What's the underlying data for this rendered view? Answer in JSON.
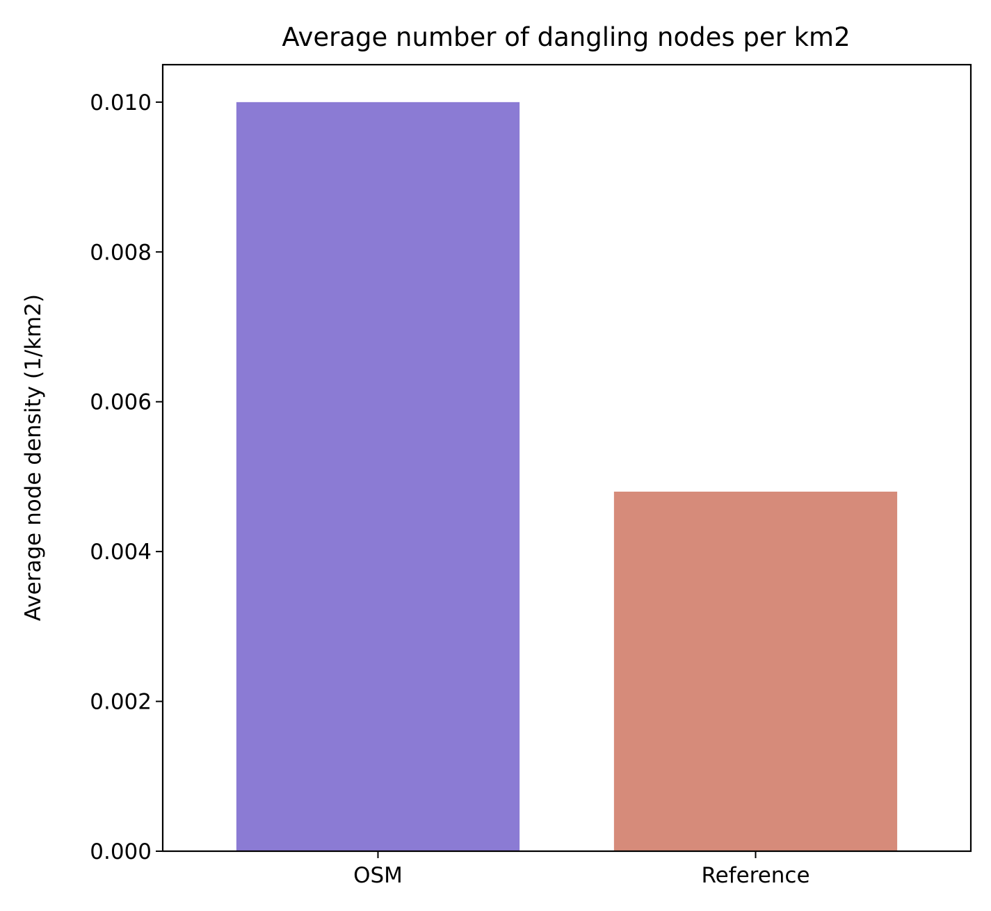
{
  "chart_data": {
    "type": "bar",
    "title": "Average number of dangling nodes per km2",
    "xlabel": "",
    "ylabel": "Average node density (1/km2)",
    "categories": [
      "OSM",
      "Reference"
    ],
    "values": [
      0.01,
      0.0048
    ],
    "colors": [
      "#8b7bd4",
      "#d68b7a"
    ],
    "ylim": [
      0,
      0.0105
    ],
    "yticks": [
      0.0,
      0.002,
      0.004,
      0.006,
      0.008,
      0.01
    ],
    "ytick_labels": [
      "0.000",
      "0.002",
      "0.004",
      "0.006",
      "0.008",
      "0.010"
    ],
    "grid": false,
    "legend": "none"
  }
}
